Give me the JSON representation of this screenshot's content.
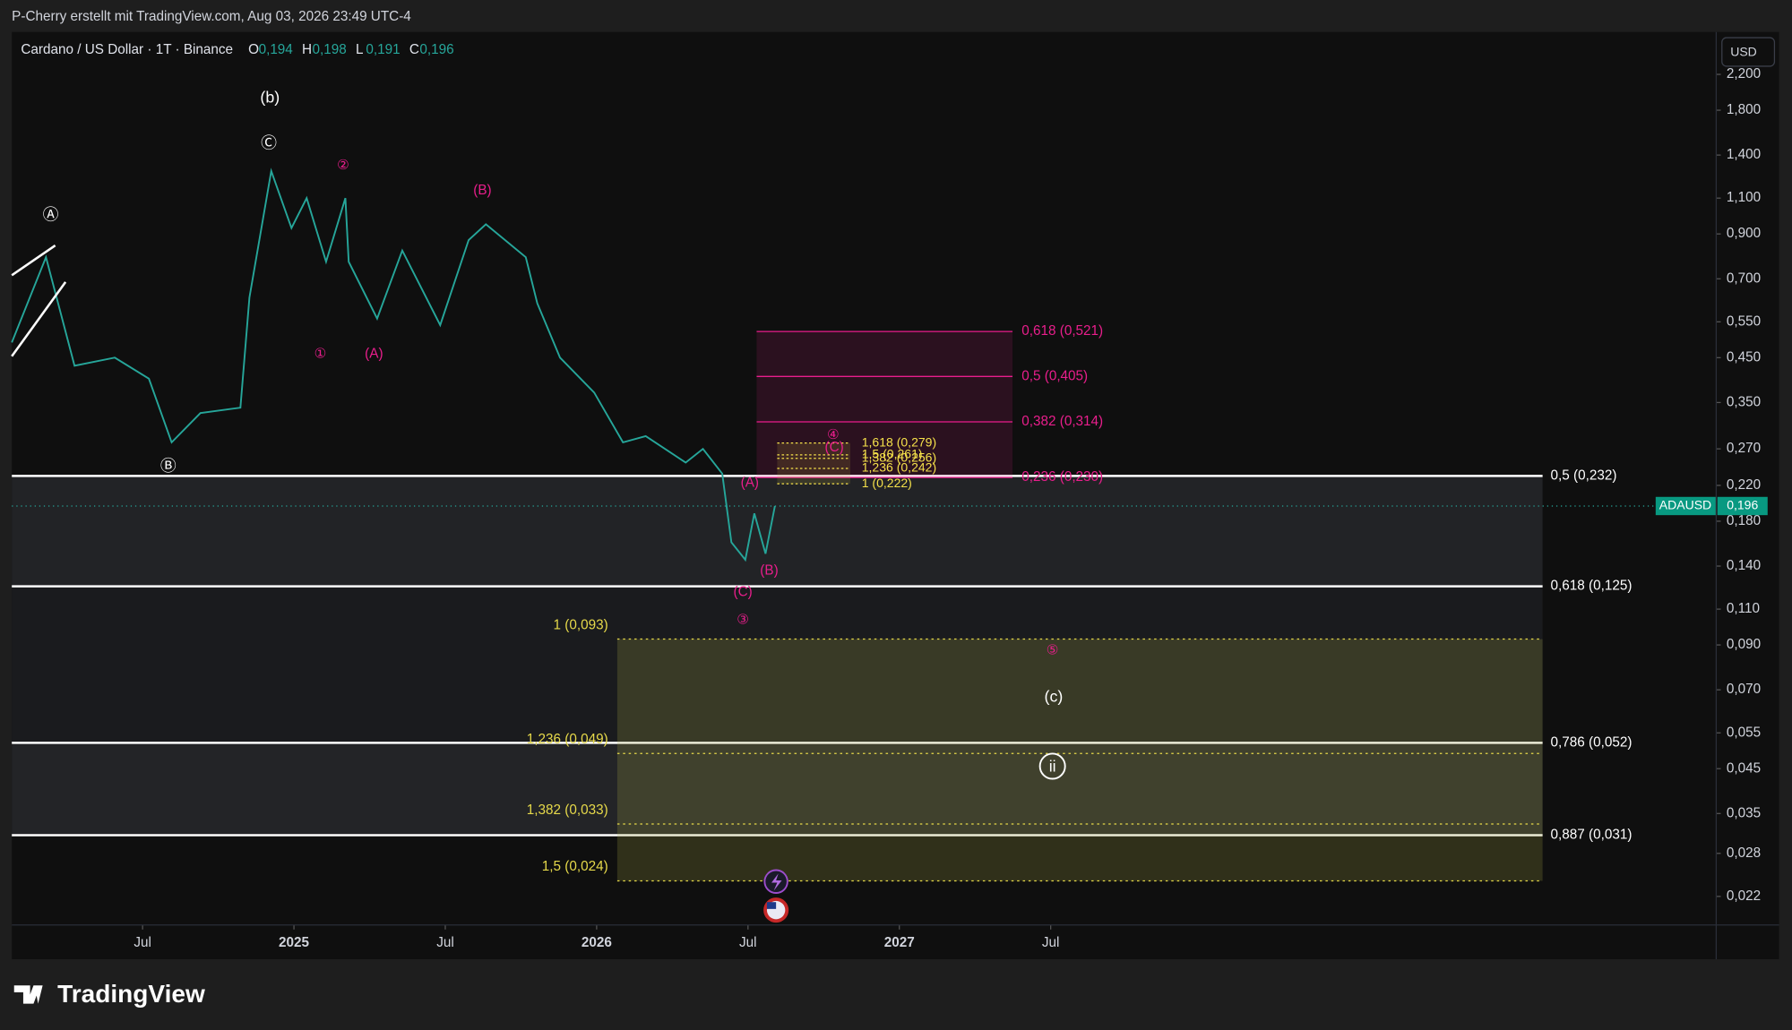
{
  "header": {
    "text": "P-Cherry erstellt mit TradingView.com, Aug 03, 2026 23:49 UTC-4"
  },
  "brand": "TradingView",
  "currency_button": "USD",
  "chart_data": {
    "type": "line",
    "title": "Cardano / US Dollar · 1T · Binance",
    "ohlc": [
      {
        "key": "O",
        "label": "0,194"
      },
      {
        "key": "H",
        "label": "0,198"
      },
      {
        "key": "L",
        "label": "0,191"
      },
      {
        "key": "C",
        "label": "0,196"
      }
    ],
    "log_scale": true,
    "xlim": [
      2024.068,
      2029.691
    ],
    "xticks": [
      {
        "value": 2024.5,
        "label": "Jul"
      },
      {
        "value": 2025,
        "label": "2025"
      },
      {
        "value": 2025.5,
        "label": "Jul"
      },
      {
        "value": 2026,
        "label": "2026"
      },
      {
        "value": 2026.5,
        "label": "Jul"
      },
      {
        "value": 2027,
        "label": "2027"
      },
      {
        "value": 2027.5,
        "label": "Jul"
      }
    ],
    "ylim": [
      0.01875,
      2.79
    ],
    "yticks": [
      {
        "value": 2.2,
        "label": "2,200"
      },
      {
        "value": 1.8,
        "label": "1,800"
      },
      {
        "value": 1.4,
        "label": "1,400"
      },
      {
        "value": 1.1,
        "label": "1,100"
      },
      {
        "value": 0.9,
        "label": "0,900"
      },
      {
        "value": 0.7,
        "label": "0,700"
      },
      {
        "value": 0.55,
        "label": "0,550"
      },
      {
        "value": 0.45,
        "label": "0,450"
      },
      {
        "value": 0.35,
        "label": "0,350"
      },
      {
        "value": 0.27,
        "label": "0,270"
      },
      {
        "value": 0.22,
        "label": "0,220"
      },
      {
        "value": 0.18,
        "label": "0,180"
      },
      {
        "value": 0.14,
        "label": "0,140"
      },
      {
        "value": 0.11,
        "label": "0,110"
      },
      {
        "value": 0.09,
        "label": "0,090"
      },
      {
        "value": 0.07,
        "label": "0,070"
      },
      {
        "value": 0.055,
        "label": "0,055"
      },
      {
        "value": 0.045,
        "label": "0,045"
      },
      {
        "value": 0.035,
        "label": "0,035"
      },
      {
        "value": 0.028,
        "label": "0,028"
      },
      {
        "value": 0.022,
        "label": "0,022"
      }
    ],
    "series": [
      {
        "name": "ADAUSD",
        "color": "#26a69a",
        "x": [
          2024.068,
          2024.181,
          2024.275,
          2024.408,
          2024.521,
          2024.596,
          2024.691,
          2024.823,
          2024.853,
          2024.925,
          2024.992,
          2025.042,
          2025.106,
          2025.17,
          2025.181,
          2025.275,
          2025.358,
          2025.483,
          2025.577,
          2025.634,
          2025.766,
          2025.804,
          2025.879,
          2025.992,
          2026.087,
          2026.162,
          2026.294,
          2026.351,
          2026.415,
          2026.445,
          2026.491,
          2026.521,
          2026.558,
          2026.589
        ],
        "values": [
          0.49,
          0.79,
          0.43,
          0.45,
          0.4,
          0.28,
          0.33,
          0.34,
          0.63,
          1.28,
          0.93,
          1.1,
          0.77,
          1.1,
          0.77,
          0.56,
          0.82,
          0.54,
          0.87,
          0.95,
          0.79,
          0.61,
          0.45,
          0.37,
          0.28,
          0.29,
          0.25,
          0.27,
          0.235,
          0.16,
          0.145,
          0.188,
          0.15,
          0.196
        ]
      }
    ],
    "last_price": {
      "value": 0.196,
      "label": "0,196"
    },
    "fib_sets": [
      {
        "color": "#ffffff",
        "levels": [
          {
            "value": 0.232,
            "label": "0,5 (0,232)"
          },
          {
            "value": 0.125,
            "label": "0,618 (0,125)"
          },
          {
            "value": 0.052,
            "label": "0,786 (0,052)"
          },
          {
            "value": 0.031,
            "label": "0,887 (0,031)"
          }
        ]
      },
      {
        "color": "#e91e8c",
        "levels": [
          {
            "value": 0.521,
            "label": "0,618 (0,521)"
          },
          {
            "value": 0.405,
            "label": "0,5 (0,405)"
          },
          {
            "value": 0.314,
            "label": "0,382 (0,314)"
          },
          {
            "value": 0.23,
            "label": "0,236 (0,230)"
          }
        ]
      },
      {
        "color": "#e6d94a",
        "levels": [
          {
            "value": 0.093,
            "label": "1 (0,093)"
          },
          {
            "value": 0.049,
            "label": "1,236 (0,049)"
          },
          {
            "value": 0.033,
            "label": "1,382 (0,033)"
          },
          {
            "value": 0.024,
            "label": "1,5 (0,024)"
          }
        ]
      },
      {
        "color": "#f5e14a",
        "levels": [
          {
            "value": 0.279,
            "label": "1,618 (0,279)"
          },
          {
            "value": 0.261,
            "label": "1,5 (0,261)"
          },
          {
            "value": 0.256,
            "label": "1,382 (0,256)"
          },
          {
            "value": 0.242,
            "label": "1,236 (0,242)"
          },
          {
            "value": 0.222,
            "label": "1 (0,222)"
          }
        ]
      }
    ],
    "annotations": [
      "(b)",
      "Ⓒ",
      "Ⓐ",
      "Ⓑ",
      "②",
      "(B)",
      "①",
      "(A)",
      "④",
      "(C)",
      "(A)",
      "(B)",
      "(C)",
      "③",
      "⑤",
      "(c)",
      "ii"
    ]
  }
}
